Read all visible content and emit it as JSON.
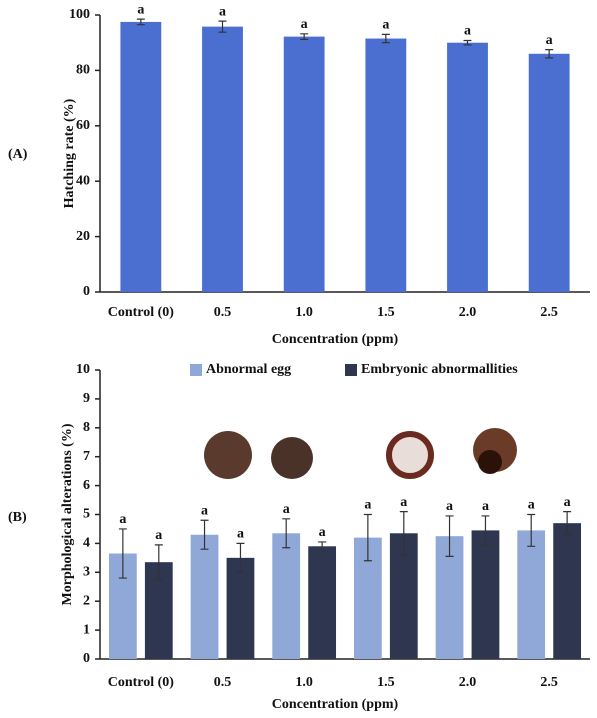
{
  "chart_data": [
    {
      "type": "bar",
      "panel_label": "(A)",
      "ylabel": "Hatching rate (%)",
      "xlabel": "Concentration (ppm)",
      "categories": [
        "Control (0)",
        "0.5",
        "1.0",
        "1.5",
        "2.0",
        "2.5"
      ],
      "values": [
        97.5,
        95.8,
        92.2,
        91.5,
        90,
        86
      ],
      "errors": [
        1,
        2,
        1,
        1.5,
        0.8,
        1.5
      ],
      "labels": [
        "a",
        "a",
        "a",
        "a",
        "a",
        "a"
      ],
      "color": "#4a6fd0",
      "ylim": [
        0,
        100
      ],
      "yticks": [
        0,
        20,
        40,
        60,
        80,
        100
      ],
      "grid": false
    },
    {
      "type": "bar",
      "panel_label": "(B)",
      "ylabel": "Morphological alterations (%)",
      "xlabel": "Concentration (ppm)",
      "categories": [
        "Control (0)",
        "0.5",
        "1.0",
        "1.5",
        "2.0",
        "2.5"
      ],
      "series": [
        {
          "name": "Abnormal egg",
          "color": "#8fa8d8",
          "values": [
            3.65,
            4.3,
            4.35,
            4.2,
            4.25,
            4.45
          ],
          "errors": [
            0.85,
            0.5,
            0.5,
            0.8,
            0.7,
            0.55
          ],
          "labels": [
            "a",
            "a",
            "a",
            "a",
            "a",
            "a"
          ]
        },
        {
          "name": "Embryonic abnormallities",
          "color": "#2e3650",
          "values": [
            3.35,
            3.5,
            3.9,
            4.35,
            4.45,
            4.7
          ],
          "errors": [
            0.6,
            0.5,
            0.15,
            0.75,
            0.5,
            0.4
          ],
          "labels": [
            "a",
            "a",
            "a",
            "a",
            "a",
            "a"
          ]
        }
      ],
      "legend": "top",
      "ylim": [
        0,
        10
      ],
      "yticks": [
        0,
        1,
        2,
        3,
        4,
        5,
        6,
        7,
        8,
        9,
        10
      ],
      "grid": false
    }
  ]
}
